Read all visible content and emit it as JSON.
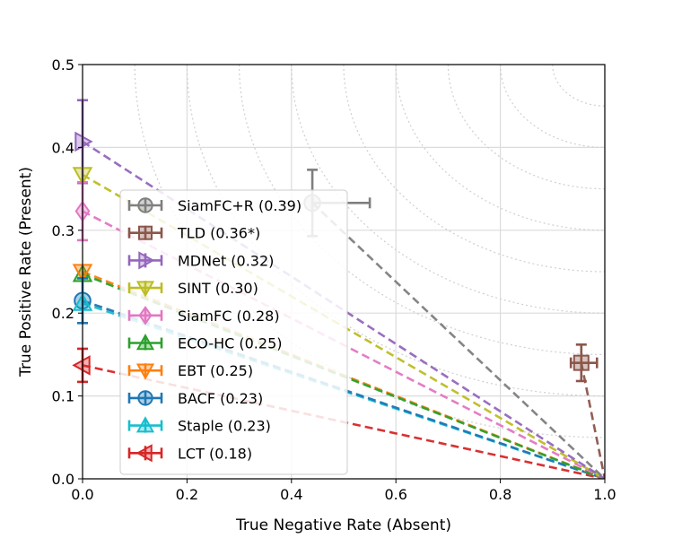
{
  "chart_data": {
    "type": "scatter",
    "xlabel": "True Negative Rate (Absent)",
    "ylabel": "True Positive Rate (Present)",
    "xlim": [
      0,
      1
    ],
    "ylim": [
      0,
      0.5
    ],
    "xticks": [
      "0.0",
      "0.2",
      "0.4",
      "0.6",
      "0.8",
      "1.0"
    ],
    "yticks": [
      "0.0",
      "0.1",
      "0.2",
      "0.3",
      "0.4",
      "0.5"
    ],
    "grid": true,
    "iso_contours": true,
    "legend_position": "center-left",
    "series": [
      {
        "name": "SiamFC+R (0.39)",
        "color": "#7f7f7f",
        "marker": "circle",
        "x": 0.44,
        "y": 0.333,
        "x_err": [
          0.0,
          0.11
        ],
        "y_err": [
          0.04,
          0.04
        ]
      },
      {
        "name": "TLD (0.36*)",
        "color": "#8c564b",
        "marker": "square",
        "x": 0.955,
        "y": 0.14,
        "x_err": [
          0.02,
          0.03
        ],
        "y_err": [
          0.022,
          0.022
        ]
      },
      {
        "name": "MDNet (0.32)",
        "color": "#9467bd",
        "marker": "triangle-right",
        "x": 0.0,
        "y": 0.407,
        "x_err": [
          0.0,
          0.0
        ],
        "y_err": [
          0.05,
          0.05
        ]
      },
      {
        "name": "SINT (0.30)",
        "color": "#bcbd22",
        "marker": "triangle-down",
        "x": 0.0,
        "y": 0.367,
        "x_err": [
          0.0,
          0.0
        ],
        "y_err": [
          0.0,
          0.0
        ]
      },
      {
        "name": "SiamFC (0.28)",
        "color": "#e377c2",
        "marker": "diamond",
        "x": 0.0,
        "y": 0.323,
        "x_err": [
          0.0,
          0.0
        ],
        "y_err": [
          0.035,
          0.035
        ]
      },
      {
        "name": "ECO-HC (0.25)",
        "color": "#2ca02c",
        "marker": "triangle-up",
        "x": 0.0,
        "y": 0.247,
        "x_err": [
          0.0,
          0.0
        ],
        "y_err": [
          0.0,
          0.0
        ]
      },
      {
        "name": "EBT (0.25)",
        "color": "#ff7f0e",
        "marker": "triangle-down",
        "x": 0.0,
        "y": 0.25,
        "x_err": [
          0.0,
          0.0
        ],
        "y_err": [
          0.0,
          0.0
        ]
      },
      {
        "name": "BACF (0.23)",
        "color": "#1f77b4",
        "marker": "circle",
        "x": 0.0,
        "y": 0.215,
        "x_err": [
          0.0,
          0.0
        ],
        "y_err": [
          0.027,
          0.027
        ]
      },
      {
        "name": "Staple (0.23)",
        "color": "#17becf",
        "marker": "triangle-up",
        "x": 0.0,
        "y": 0.212,
        "x_err": [
          0.0,
          0.0
        ],
        "y_err": [
          0.0,
          0.0
        ]
      },
      {
        "name": "LCT (0.18)",
        "color": "#d62728",
        "marker": "triangle-left",
        "x": 0.0,
        "y": 0.137,
        "x_err": [
          0.0,
          0.0
        ],
        "y_err": [
          0.02,
          0.02
        ]
      }
    ],
    "dashed_line_end": [
      1.0,
      0.0
    ]
  }
}
